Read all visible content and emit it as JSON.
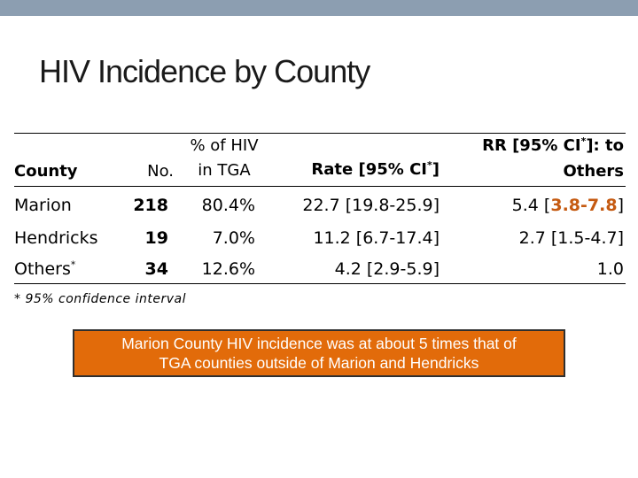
{
  "slide": {
    "title": "HIV Incidence by County"
  },
  "table": {
    "headers": {
      "county": "County",
      "no": "No.",
      "pct_line1": "% of HIV",
      "pct_line2": "in TGA",
      "rate_prefix": "Rate [95% CI",
      "rate_sup": "*",
      "rate_suffix": "]",
      "rr_line1_prefix": "RR [95% CI",
      "rr_line1_sup": "*",
      "rr_line1_suffix": "]: to",
      "rr_line2": "Others"
    },
    "rows": [
      {
        "county": "Marion",
        "county_sup": "",
        "no": "218",
        "pct": "80.4%",
        "rate": "22.7 [19.8-25.9]",
        "rr_prefix": "5.4 [",
        "rr_low": "3.8",
        "rr_sep": "-",
        "rr_high": "7.8",
        "rr_suffix": "]"
      },
      {
        "county": "Hendricks",
        "county_sup": "",
        "no": "19",
        "pct": "7.0%",
        "rate": "11.2 [6.7-17.4]",
        "rr": "2.7 [1.5-4.7]"
      },
      {
        "county": "Others",
        "county_sup": "*",
        "no": "34",
        "pct": "12.6%",
        "rate": "4.2 [2.9-5.9]",
        "rr": "1.0"
      }
    ]
  },
  "footnote": "* 95% confidence interval",
  "callout": {
    "line1": "Marion County HIV incidence was at about 5 times that of",
    "line2": "TGA counties outside of Marion and Hendricks"
  },
  "colors": {
    "top_bar": "#8c9eb1",
    "callout_bg": "#e26b0a",
    "highlight": "#c55a11"
  }
}
